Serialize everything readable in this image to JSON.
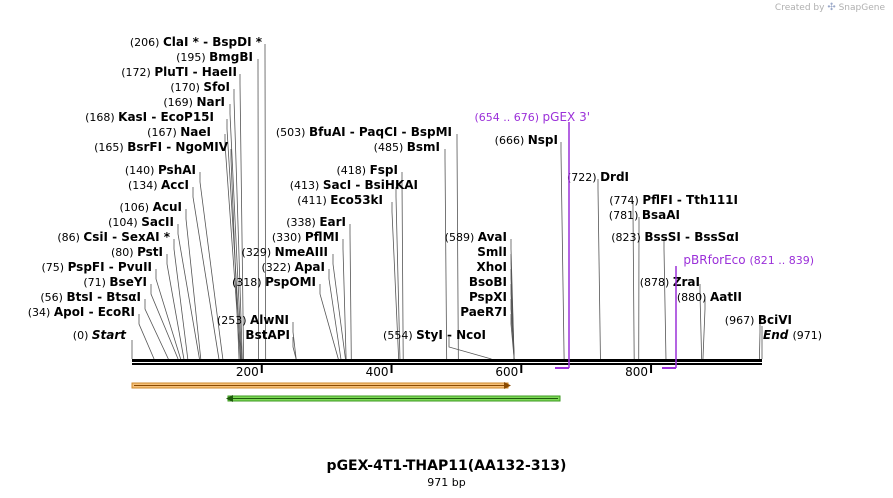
{
  "credit": {
    "prefix": "Created by",
    "brand": "SnapGene"
  },
  "plasmid": {
    "name": "pGEX-4T1-THAP11(AA132-313)",
    "size_label": "971 bp"
  },
  "axis": {
    "start_bp": 0,
    "end_bp": 971,
    "ticks": [
      "200",
      "400",
      "600",
      "800"
    ]
  },
  "ends": {
    "start": {
      "pos": "(0)",
      "label": "Start"
    },
    "end": {
      "pos": "(971)",
      "label": "End"
    }
  },
  "sites": [
    {
      "pos": "(206)",
      "label": "ClaI * - BspDI *"
    },
    {
      "pos": "(195)",
      "label": "BmgBI"
    },
    {
      "pos": "(172)",
      "label": "PluTI - HaeII"
    },
    {
      "pos": "(170)",
      "label": "SfoI"
    },
    {
      "pos": "(169)",
      "label": "NarI"
    },
    {
      "pos": "(168)",
      "label": "KasI - EcoP15I"
    },
    {
      "pos": "(167)",
      "label": "NaeI"
    },
    {
      "pos": "(165)",
      "label": "BsrFI - NgoMIV"
    },
    {
      "pos": "(140)",
      "label": "PshAI"
    },
    {
      "pos": "(134)",
      "label": "AccI"
    },
    {
      "pos": "(106)",
      "label": "AcuI"
    },
    {
      "pos": "(104)",
      "label": "SacII"
    },
    {
      "pos": "(86)",
      "label": "CsiI - SexAI *"
    },
    {
      "pos": "(80)",
      "label": "PstI"
    },
    {
      "pos": "(75)",
      "label": "PspFI - PvuII"
    },
    {
      "pos": "(71)",
      "label": "BseYI"
    },
    {
      "pos": "(56)",
      "label": "BtsI - BtsαI"
    },
    {
      "pos": "(34)",
      "label": "ApoI - EcoRI"
    },
    {
      "pos": "(503)",
      "label": "BfuAI - PaqCI - BspMI"
    },
    {
      "pos": "(485)",
      "label": "BsmI"
    },
    {
      "pos": "(418)",
      "label": "FspI"
    },
    {
      "pos": "(413)",
      "label": "SacI - BsiHKAI"
    },
    {
      "pos": "(411)",
      "label": "Eco53kI"
    },
    {
      "pos": "(338)",
      "label": "EarI"
    },
    {
      "pos": "(330)",
      "label": "PflMI"
    },
    {
      "pos": "(329)",
      "label": "NmeAIII"
    },
    {
      "pos": "(322)",
      "label": "ApaI"
    },
    {
      "pos": "(318)",
      "label": "PspOMI"
    },
    {
      "pos": "(253)",
      "label": "AlwNI"
    },
    {
      "pos": "",
      "label": "BstAPI"
    },
    {
      "pos": "(554)",
      "label": "StyI - NcoI"
    },
    {
      "pos": "(589)",
      "label": "AvaI"
    },
    {
      "pos": "",
      "label": "SmlI"
    },
    {
      "pos": "",
      "label": "XhoI"
    },
    {
      "pos": "",
      "label": "BsoBI"
    },
    {
      "pos": "",
      "label": "PspXI"
    },
    {
      "pos": "",
      "label": "PaeR7I"
    },
    {
      "pos": "(666)",
      "label": "NspI"
    },
    {
      "pos": "(722)",
      "label": "DrdI"
    },
    {
      "pos": "(774)",
      "label": "PflFI - Tth111I"
    },
    {
      "pos": "(781)",
      "label": "BsaAI"
    },
    {
      "pos": "(823)",
      "label": "BssSI - BssSαI"
    },
    {
      "pos": "(878)",
      "label": "ZraI"
    },
    {
      "pos": "(880)",
      "label": "AatII"
    },
    {
      "pos": "(967)",
      "label": "BciVI"
    }
  ],
  "primers": [
    {
      "range": "(654 .. 676)",
      "name": "pGEX 3'"
    },
    {
      "range": "(821 .. 839)",
      "name": "pBRforEco"
    }
  ],
  "colors": {
    "backbone": "#000000",
    "feature_orange": "#f5c07a",
    "feature_green": "#7ed957",
    "primer": "#9b30d9",
    "leader": "#555555"
  }
}
